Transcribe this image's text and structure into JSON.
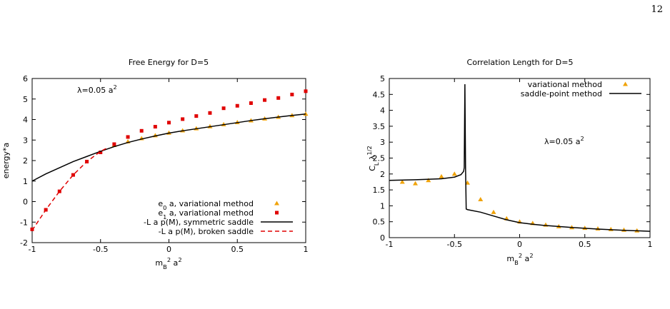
{
  "page_number": "12",
  "chart_data": [
    {
      "type": "line",
      "title": "Free Energy for D=5",
      "x_label": [
        {
          "text": "m"
        },
        {
          "text": "B",
          "script": "sub"
        },
        {
          "text": "2",
          "script": "super"
        },
        {
          "text": " a"
        },
        {
          "text": "2",
          "script": "super"
        }
      ],
      "y_label": [
        {
          "text": "energy*a"
        }
      ],
      "annotation": [
        {
          "text": "λ=0.05 a"
        },
        {
          "text": "2",
          "script": "super"
        }
      ],
      "xlim": [
        -1,
        1
      ],
      "xticks": [
        -1,
        -0.5,
        0,
        0.5,
        1
      ],
      "ylim": [
        -2,
        6
      ],
      "yticks": [
        -2,
        -1,
        0,
        1,
        2,
        3,
        4,
        5,
        6
      ],
      "legend": "bottom-right",
      "series": [
        {
          "name": [
            {
              "text": "e"
            },
            {
              "text": "0",
              "script": "sub"
            },
            {
              "text": " a, variational method"
            }
          ],
          "color": "#f0a30a",
          "marker": "triangle",
          "x": [
            -0.4,
            -0.3,
            -0.2,
            -0.1,
            0,
            0.1,
            0.2,
            0.3,
            0.4,
            0.5,
            0.6,
            0.7,
            0.8,
            0.9,
            1
          ],
          "values": [
            2.75,
            2.92,
            3.08,
            3.22,
            3.35,
            3.46,
            3.56,
            3.66,
            3.76,
            3.86,
            3.95,
            4.04,
            4.12,
            4.2,
            4.27
          ]
        },
        {
          "name": [
            {
              "text": "e"
            },
            {
              "text": "1",
              "script": "sub"
            },
            {
              "text": " a, variational method"
            }
          ],
          "color": "#e00000",
          "marker": "square",
          "x": [
            -1,
            -0.9,
            -0.8,
            -0.7,
            -0.6,
            -0.5,
            -0.4,
            -0.3,
            -0.2,
            -0.1,
            0,
            0.1,
            0.2,
            0.3,
            0.4,
            0.5,
            0.6,
            0.7,
            0.8,
            0.9,
            1
          ],
          "values": [
            -1.35,
            -0.4,
            0.5,
            1.3,
            1.95,
            2.4,
            2.8,
            3.15,
            3.45,
            3.65,
            3.85,
            4.02,
            4.17,
            4.32,
            4.55,
            4.67,
            4.8,
            4.95,
            5.05,
            5.22,
            5.38
          ]
        },
        {
          "name": [
            {
              "text": "-L a p(M), symmetric saddle"
            }
          ],
          "color": "#000000",
          "line_style": "solid",
          "x": [
            -1,
            -0.9,
            -0.8,
            -0.7,
            -0.6,
            -0.5,
            -0.4,
            -0.3,
            -0.2,
            -0.1,
            0,
            0.1,
            0.2,
            0.3,
            0.4,
            0.5,
            0.6,
            0.7,
            0.8,
            0.9,
            1
          ],
          "values": [
            1.0,
            1.35,
            1.65,
            1.95,
            2.2,
            2.45,
            2.68,
            2.88,
            3.05,
            3.2,
            3.34,
            3.45,
            3.55,
            3.65,
            3.75,
            3.85,
            3.95,
            4.04,
            4.12,
            4.2,
            4.27
          ]
        },
        {
          "name": [
            {
              "text": "-L a p(M), broken saddle"
            }
          ],
          "color": "#e00000",
          "line_style": "dashed",
          "x": [
            -1,
            -0.9,
            -0.8,
            -0.7,
            -0.6,
            -0.5,
            -0.45
          ],
          "values": [
            -1.4,
            -0.4,
            0.5,
            1.3,
            1.95,
            2.45,
            2.62
          ]
        }
      ]
    },
    {
      "type": "line",
      "title": "Correlation Length for D=5",
      "x_label": [
        {
          "text": "m"
        },
        {
          "text": "B",
          "script": "sub"
        },
        {
          "text": "2",
          "script": "super"
        },
        {
          "text": " a"
        },
        {
          "text": "2",
          "script": "super"
        }
      ],
      "y_label": [
        {
          "text": "C"
        },
        {
          "text": "L",
          "script": "sub"
        },
        {
          "text": " λ"
        },
        {
          "text": "1/2",
          "script": "super"
        }
      ],
      "annotation": [
        {
          "text": "λ=0.05 a"
        },
        {
          "text": "2",
          "script": "super"
        }
      ],
      "xlim": [
        -1,
        1
      ],
      "xticks": [
        -1,
        -0.5,
        0,
        0.5,
        1
      ],
      "ylim": [
        0,
        5
      ],
      "yticks": [
        0,
        0.5,
        1,
        1.5,
        2,
        2.5,
        3,
        3.5,
        4,
        4.5,
        5
      ],
      "legend": "top-right",
      "series": [
        {
          "name": [
            {
              "text": "variational method"
            }
          ],
          "color": "#f0a30a",
          "marker": "triangle",
          "x": [
            -0.9,
            -0.8,
            -0.7,
            -0.6,
            -0.5,
            -0.4,
            -0.3,
            -0.2,
            -0.1,
            0,
            0.1,
            0.2,
            0.3,
            0.4,
            0.5,
            0.6,
            0.7,
            0.8,
            0.9
          ],
          "values": [
            1.75,
            1.7,
            1.8,
            1.92,
            2.0,
            1.72,
            1.2,
            0.8,
            0.6,
            0.5,
            0.45,
            0.4,
            0.35,
            0.32,
            0.3,
            0.28,
            0.26,
            0.24,
            0.22
          ]
        },
        {
          "name": [
            {
              "text": "saddle-point method"
            }
          ],
          "color": "#000000",
          "line_style": "solid",
          "x": [
            -1,
            -0.8,
            -0.6,
            -0.5,
            -0.45,
            -0.43,
            -0.425,
            -0.42,
            -0.415,
            -0.41,
            -0.4,
            -0.3,
            -0.2,
            -0.1,
            0,
            0.1,
            0.2,
            0.4,
            0.6,
            0.8,
            1
          ],
          "values": [
            1.8,
            1.82,
            1.85,
            1.9,
            1.98,
            2.08,
            2.2,
            4.82,
            2.2,
            0.9,
            0.88,
            0.8,
            0.68,
            0.56,
            0.47,
            0.42,
            0.38,
            0.32,
            0.27,
            0.23,
            0.2
          ]
        }
      ]
    }
  ]
}
